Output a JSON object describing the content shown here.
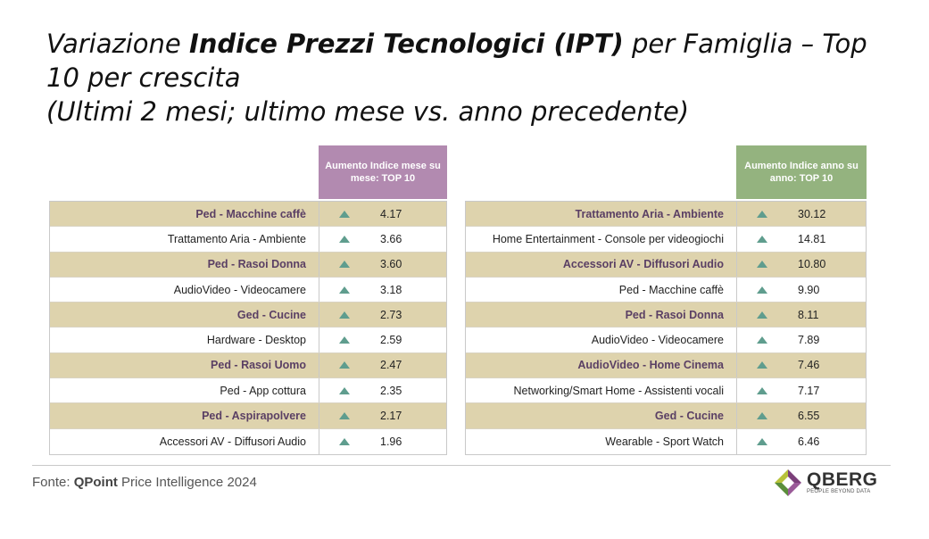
{
  "title": {
    "pre": "Variazione ",
    "bold": "Indice Prezzi Tecnologici (IPT)",
    "post": " per Famiglia – Top 10 per crescita",
    "line2": "(Ultimi 2 mesi; ultimo mese vs. anno precedente)"
  },
  "left_table": {
    "header": "Aumento Indice mese su mese: TOP 10",
    "header_color": "#b28ab0",
    "rows": [
      {
        "name": "Ped - Macchine caffè",
        "value": "4.17"
      },
      {
        "name": "Trattamento Aria - Ambiente",
        "value": "3.66"
      },
      {
        "name": "Ped - Rasoi Donna",
        "value": "3.60"
      },
      {
        "name": "AudioVideo - Videocamere",
        "value": "3.18"
      },
      {
        "name": "Ged - Cucine",
        "value": "2.73"
      },
      {
        "name": "Hardware - Desktop",
        "value": "2.59"
      },
      {
        "name": "Ped - Rasoi Uomo",
        "value": "2.47"
      },
      {
        "name": "Ped - App cottura",
        "value": "2.35"
      },
      {
        "name": "Ped - Aspirapolvere",
        "value": "2.17"
      },
      {
        "name": "Accessori AV - Diffusori Audio",
        "value": "1.96"
      }
    ]
  },
  "right_table": {
    "header": "Aumento Indice anno su anno: TOP 10",
    "header_color": "#94b37f",
    "rows": [
      {
        "name": "Trattamento Aria - Ambiente",
        "value": "30.12"
      },
      {
        "name": "Home Entertainment - Console per videogiochi",
        "value": "14.81"
      },
      {
        "name": "Accessori AV - Diffusori Audio",
        "value": "10.80"
      },
      {
        "name": "Ped - Macchine caffè",
        "value": "9.90"
      },
      {
        "name": "Ped - Rasoi Donna",
        "value": "8.11"
      },
      {
        "name": "AudioVideo - Videocamere",
        "value": "7.89"
      },
      {
        "name": "AudioVideo - Home Cinema",
        "value": "7.46"
      },
      {
        "name": "Networking/Smart Home - Assistenti vocali",
        "value": "7.17"
      },
      {
        "name": "Ged - Cucine",
        "value": "6.55"
      },
      {
        "name": "Wearable - Sport Watch",
        "value": "6.46"
      }
    ]
  },
  "footer": {
    "source_pre": "Fonte: ",
    "source_bold": "QPoint",
    "source_post": " Price Intelligence 2024"
  },
  "logo": {
    "brand": "QBERG",
    "tagline": "PEOPLE BEYOND DATA"
  },
  "icons": {
    "increase": "up-triangle-icon"
  },
  "colors": {
    "shade": "#ded3ad",
    "arrow": "#5f9d8e"
  }
}
